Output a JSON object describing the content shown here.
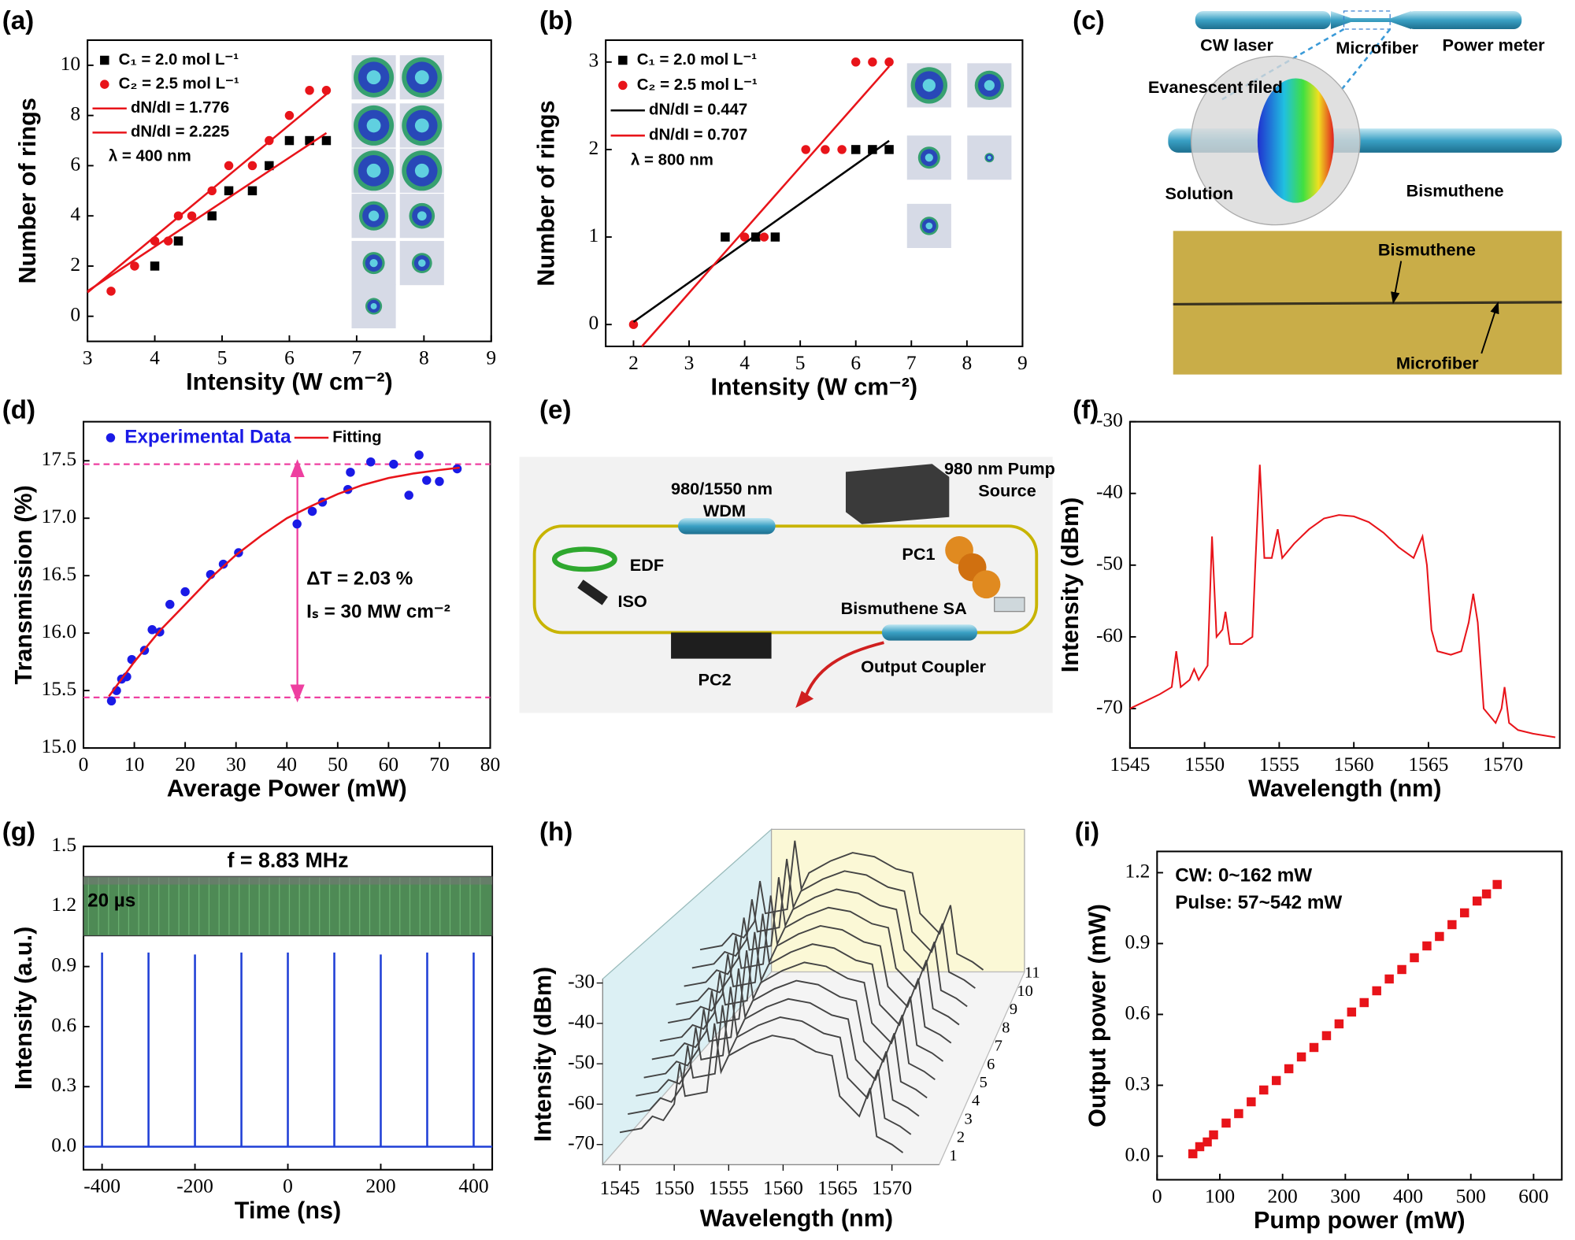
{
  "chart_data": [
    {
      "type": "scatter",
      "panel_label": "(a)",
      "x_label": "Intensity (W cm⁻²)",
      "y_label": "Number of rings",
      "xlim": [
        3,
        9
      ],
      "ylim": [
        -1,
        11
      ],
      "xticks": [
        3,
        4,
        5,
        6,
        7,
        8,
        9
      ],
      "yticks": [
        0,
        2,
        4,
        6,
        8,
        10
      ],
      "series": [
        {
          "name": "C₁ = 2.0 mol L⁻¹",
          "color": "#000000",
          "marker": "square",
          "x": [
            4.0,
            4.35,
            4.85,
            5.1,
            5.45,
            5.7,
            6.0,
            6.3,
            6.55
          ],
          "values": [
            2,
            3,
            4,
            5,
            5,
            6,
            7,
            7,
            7
          ]
        },
        {
          "name": "C₂ = 2.5 mol L⁻¹",
          "color": "#e8141a",
          "marker": "circle",
          "x": [
            3.35,
            3.7,
            4.0,
            4.2,
            4.35,
            4.55,
            4.85,
            5.1,
            5.45,
            5.7,
            6.0,
            6.3,
            6.55
          ],
          "values": [
            1,
            2,
            3,
            3,
            4,
            4,
            5,
            6,
            6,
            7,
            8,
            9,
            9
          ]
        },
        {
          "name": "dN/dI = 1.776",
          "color": "#e8141a",
          "marker": "line",
          "x": [
            3,
            6.55
          ],
          "values": [
            1.0,
            7.3
          ]
        },
        {
          "name": "dN/dI = 2.225",
          "color": "#e8141a",
          "marker": "line",
          "x": [
            3,
            6.55
          ],
          "values": [
            0.95,
            8.85
          ]
        }
      ],
      "annotations": [
        "λ = 400 nm"
      ]
    },
    {
      "type": "scatter",
      "panel_label": "(b)",
      "x_label": "Intensity (W cm⁻²)",
      "y_label": "Number of rings",
      "xlim": [
        1.5,
        9
      ],
      "ylim": [
        -0.25,
        3.25
      ],
      "xticks": [
        2,
        3,
        4,
        5,
        6,
        7,
        8,
        9
      ],
      "yticks": [
        0,
        1,
        2,
        3
      ],
      "series": [
        {
          "name": "C₁ = 2.0 mol L⁻¹",
          "color": "#000000",
          "marker": "square",
          "x": [
            3.65,
            4.2,
            4.55,
            6.0,
            6.3,
            6.6
          ],
          "values": [
            1,
            1,
            1,
            2,
            2,
            2
          ]
        },
        {
          "name": "C₂ = 2.5 mol L⁻¹",
          "color": "#e8141a",
          "marker": "circle",
          "x": [
            2.0,
            4.0,
            4.35,
            5.1,
            5.45,
            5.75,
            6.0,
            6.3,
            6.6
          ],
          "values": [
            0,
            1,
            1,
            2,
            2,
            2,
            3,
            3,
            3
          ]
        },
        {
          "name": "dN/dI = 0.447",
          "color": "#000000",
          "marker": "line",
          "x": [
            2.0,
            6.6
          ],
          "values": [
            0.03,
            2.1
          ]
        },
        {
          "name": "dN/dI = 0.707",
          "color": "#e8141a",
          "marker": "line",
          "x": [
            2.15,
            6.6
          ],
          "values": [
            -0.25,
            2.95
          ]
        }
      ],
      "annotations": [
        "λ = 800 nm"
      ]
    },
    {
      "type": "scatter",
      "panel_label": "(d)",
      "x_label": "Average Power (mW)",
      "y_label": "Transmission (%)",
      "xlim": [
        0,
        80
      ],
      "ylim": [
        15,
        17.84
      ],
      "xticks": [
        0,
        10,
        20,
        30,
        40,
        50,
        60,
        70,
        80
      ],
      "yticks": [
        {
          "value": 15,
          "label": "15.0"
        },
        15.5,
        {
          "value": 16,
          "label": "16.0"
        },
        16.5,
        {
          "value": 17,
          "label": "17.0"
        },
        17.5
      ],
      "series": [
        {
          "name": "Experimental Data",
          "color": "#1a1ae6",
          "marker": "circle",
          "x": [
            5.5,
            6.5,
            7.5,
            8.5,
            9.5,
            12,
            13.5,
            15,
            17,
            20,
            25,
            27.5,
            30.5,
            42,
            45,
            47,
            52,
            52.5,
            56.5,
            61,
            64,
            66,
            67.5,
            70,
            73.5
          ],
          "values": [
            15.41,
            15.5,
            15.6,
            15.62,
            15.77,
            15.85,
            16.03,
            16.01,
            16.25,
            16.36,
            16.51,
            16.6,
            16.7,
            16.95,
            17.06,
            17.14,
            17.25,
            17.4,
            17.49,
            17.47,
            17.2,
            17.55,
            17.33,
            17.32,
            17.43
          ]
        },
        {
          "name": "Fitting",
          "color": "#e8141a",
          "marker": "line",
          "x": [
            5,
            10,
            15,
            20,
            25,
            30,
            35,
            40,
            45,
            50,
            55,
            60,
            65,
            70,
            74
          ],
          "values": [
            15.45,
            15.75,
            16.02,
            16.25,
            16.48,
            16.68,
            16.85,
            17.0,
            17.11,
            17.21,
            17.29,
            17.35,
            17.39,
            17.42,
            17.44
          ]
        }
      ],
      "reference_lines": [
        17.47,
        15.44
      ],
      "reference_color": "#ee3fa0",
      "annotations": [
        "ΔT = 2.03 %",
        "Iₛ = 30 MW cm⁻²"
      ],
      "annotation_color": "#ee3fa0"
    },
    {
      "type": "line",
      "panel_label": "(f)",
      "x_label": "Wavelength (nm)",
      "y_label": "Intensity (dBm)",
      "xlim": [
        1545,
        1573.8
      ],
      "ylim": [
        -75.5,
        -30
      ],
      "xticks": [
        1545,
        1550,
        1555,
        1560,
        1565,
        1570
      ],
      "yticks": [
        -70,
        -60,
        -50,
        -40,
        -30
      ],
      "series": [
        {
          "color": "#e8141a",
          "marker": "line",
          "x": [
            1545,
            1546,
            1547,
            1547.8,
            1548.1,
            1548.4,
            1549,
            1549.3,
            1549.6,
            1550.2,
            1550.5,
            1550.8,
            1551.2,
            1551.4,
            1551.7,
            1552.5,
            1553.2,
            1553.4,
            1553.7,
            1554.0,
            1554.5,
            1554.9,
            1555.2,
            1556,
            1557,
            1558,
            1559,
            1560,
            1561,
            1562,
            1563,
            1564,
            1564.4,
            1564.6,
            1564.9,
            1565.2,
            1565.6,
            1566.5,
            1567.2,
            1567.7,
            1568,
            1568.3,
            1568.7,
            1569.5,
            1569.9,
            1570.1,
            1570.4,
            1571,
            1572,
            1573.5
          ],
          "values": [
            -70,
            -69,
            -68,
            -67,
            -62,
            -67,
            -66,
            -64.5,
            -66,
            -64,
            -46,
            -60,
            -59,
            -56.5,
            -61,
            -61,
            -60,
            -50,
            -36,
            -49,
            -49,
            -45,
            -49,
            -47,
            -45,
            -43.5,
            -43,
            -43.2,
            -44,
            -45.5,
            -47.5,
            -49,
            -47,
            -46,
            -50,
            -59,
            -62,
            -62.5,
            -62,
            -58,
            -54,
            -58,
            -70,
            -72,
            -70,
            -67,
            -72,
            -73,
            -73.5,
            -74
          ]
        }
      ]
    },
    {
      "type": "line",
      "panel_label": "(g)",
      "x_label": "Time (ns)",
      "y_label": "Intensity (a.u.)",
      "xlim": [
        -440,
        440
      ],
      "ylim": [
        -0.115,
        1.5
      ],
      "xticks": [
        -400,
        -200,
        0,
        200,
        400
      ],
      "yticks": [
        {
          "value": 0,
          "label": "0.0"
        },
        0.3,
        0.6,
        0.9,
        1.2,
        1.5
      ],
      "title": "f = 8.83 MHz",
      "inset_label": "20 µs",
      "series": [
        {
          "color": "#1f3fd6",
          "marker": "spike",
          "x": [
            -400,
            -300,
            -200,
            -100,
            0,
            100,
            200,
            300,
            400
          ],
          "values": [
            0.97,
            0.97,
            0.96,
            0.97,
            0.97,
            0.97,
            0.96,
            0.97,
            0.97
          ]
        }
      ]
    },
    {
      "type": "waterfall",
      "panel_label": "(h)",
      "x_label": "Wavelength (nm)",
      "y_label": "Intensity (dBm)",
      "xlim": [
        1545,
        1572
      ],
      "ylim": [
        -74,
        -28
      ],
      "xticks": [
        1545,
        1550,
        1555,
        1560,
        1565,
        1570
      ],
      "yticks": [
        -70,
        -60,
        -50,
        -40,
        -30
      ],
      "zticks": [
        1,
        2,
        3,
        4,
        5,
        6,
        7,
        8,
        9,
        10,
        11
      ],
      "color": "#444444",
      "x": [
        1545,
        1547,
        1548,
        1549,
        1550,
        1550.5,
        1551,
        1553,
        1553.7,
        1554.3,
        1555,
        1557,
        1559,
        1561,
        1563,
        1564.5,
        1565.2,
        1567,
        1568,
        1568.6,
        1570,
        1571
      ],
      "values": [
        -67,
        -66,
        -63,
        -64,
        -60,
        -50,
        -58,
        -57,
        -40,
        -52,
        -48,
        -45,
        -43,
        -44,
        -47,
        -48,
        -58,
        -63,
        -56,
        -68,
        -70,
        -72
      ]
    },
    {
      "type": "scatter",
      "panel_label": "(i)",
      "x_label": "Pump power (mW)",
      "y_label": "Output power (mW)",
      "xlim": [
        0,
        645
      ],
      "ylim": [
        -0.1,
        1.29
      ],
      "xticks": [
        0,
        100,
        200,
        300,
        400,
        500,
        600
      ],
      "yticks": [
        {
          "value": 0,
          "label": "0.0"
        },
        0.3,
        0.6,
        0.9,
        1.2
      ],
      "series": [
        {
          "color": "#e8141a",
          "marker": "square",
          "x": [
            57,
            68,
            80,
            90,
            110,
            130,
            150,
            170,
            190,
            210,
            230,
            250,
            270,
            290,
            310,
            330,
            350,
            370,
            390,
            410,
            430,
            450,
            470,
            490,
            510,
            525,
            542
          ],
          "values": [
            0.01,
            0.04,
            0.06,
            0.09,
            0.14,
            0.18,
            0.23,
            0.28,
            0.32,
            0.37,
            0.42,
            0.46,
            0.51,
            0.56,
            0.61,
            0.65,
            0.7,
            0.75,
            0.79,
            0.84,
            0.89,
            0.93,
            0.98,
            1.03,
            1.08,
            1.11,
            1.15
          ]
        }
      ],
      "annotations": [
        "CW: 0~162 mW",
        "Pulse: 57~542 mW"
      ]
    }
  ],
  "panel_c": {
    "panel_label": "(c)",
    "labels": [
      "CW laser",
      "Microfiber",
      "Power meter",
      "Evanescent filed",
      "Solution",
      "Bismuthene",
      "Bismuthene",
      "Microfiber"
    ]
  },
  "panel_e": {
    "panel_label": "(e)",
    "labels": [
      "980/1550 nm",
      "WDM",
      "980 nm Pump",
      "Source",
      "EDF",
      "PC1",
      "ISO",
      "Bismuthene SA",
      "PC2",
      "Output Coupler"
    ]
  }
}
